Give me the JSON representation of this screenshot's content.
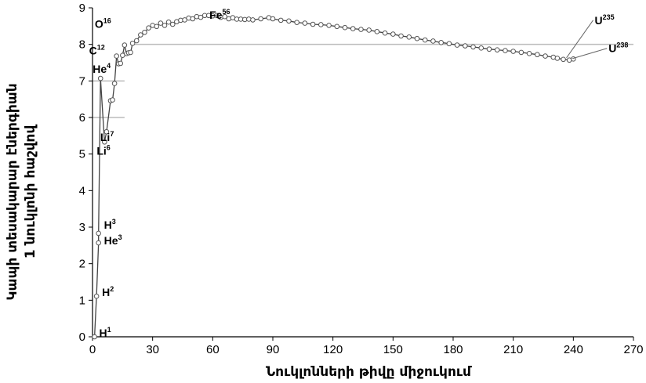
{
  "chart_data": {
    "type": "scatter",
    "xlabel": "Նուկլոնների թիվը միջուկում",
    "ylabel_lines": [
      "Կապի տեսակարար էներգիան",
      "1 նուկլոնի հաշվով"
    ],
    "xlim": [
      0,
      270
    ],
    "ylim": [
      0,
      9
    ],
    "xticks": [
      "0",
      "30",
      "60",
      "90",
      "120",
      "150",
      "180",
      "210",
      "240",
      "270"
    ],
    "yticks": [
      "0",
      "1",
      "2",
      "3",
      "4",
      "5",
      "6",
      "7",
      "8",
      "9"
    ],
    "grid": false,
    "reference_line_y": 8.0,
    "series": [
      {
        "points": [
          [
            1,
            0.0
          ],
          [
            2,
            1.11
          ],
          [
            3,
            2.57
          ],
          [
            3,
            2.83
          ],
          [
            4,
            7.07
          ],
          [
            6,
            5.33
          ],
          [
            7,
            5.61
          ],
          [
            9,
            6.46
          ],
          [
            10,
            6.48
          ],
          [
            11,
            6.93
          ],
          [
            12,
            7.68
          ],
          [
            13,
            7.47
          ],
          [
            14,
            7.48
          ],
          [
            15,
            7.7
          ],
          [
            16,
            7.98
          ],
          [
            17,
            7.75
          ],
          [
            18,
            7.77
          ],
          [
            19,
            7.78
          ],
          [
            20,
            8.03
          ],
          [
            22,
            8.1
          ],
          [
            24,
            8.26
          ],
          [
            26,
            8.33
          ],
          [
            28,
            8.45
          ],
          [
            30,
            8.52
          ],
          [
            32,
            8.49
          ],
          [
            34,
            8.58
          ],
          [
            36,
            8.52
          ],
          [
            38,
            8.61
          ],
          [
            40,
            8.55
          ],
          [
            42,
            8.62
          ],
          [
            44,
            8.66
          ],
          [
            46,
            8.67
          ],
          [
            48,
            8.72
          ],
          [
            50,
            8.7
          ],
          [
            52,
            8.76
          ],
          [
            54,
            8.74
          ],
          [
            56,
            8.79
          ],
          [
            58,
            8.79
          ],
          [
            60,
            8.78
          ],
          [
            62,
            8.79
          ],
          [
            64,
            8.74
          ],
          [
            66,
            8.76
          ],
          [
            68,
            8.7
          ],
          [
            70,
            8.73
          ],
          [
            72,
            8.69
          ],
          [
            74,
            8.69
          ],
          [
            76,
            8.68
          ],
          [
            78,
            8.69
          ],
          [
            80,
            8.67
          ],
          [
            84,
            8.7
          ],
          [
            88,
            8.73
          ],
          [
            90,
            8.7
          ],
          [
            94,
            8.66
          ],
          [
            98,
            8.64
          ],
          [
            102,
            8.6
          ],
          [
            106,
            8.58
          ],
          [
            110,
            8.55
          ],
          [
            114,
            8.54
          ],
          [
            118,
            8.52
          ],
          [
            122,
            8.49
          ],
          [
            126,
            8.46
          ],
          [
            130,
            8.43
          ],
          [
            134,
            8.41
          ],
          [
            138,
            8.39
          ],
          [
            142,
            8.35
          ],
          [
            146,
            8.31
          ],
          [
            150,
            8.28
          ],
          [
            154,
            8.23
          ],
          [
            158,
            8.2
          ],
          [
            162,
            8.16
          ],
          [
            166,
            8.12
          ],
          [
            170,
            8.09
          ],
          [
            174,
            8.05
          ],
          [
            178,
            8.02
          ],
          [
            182,
            7.98
          ],
          [
            186,
            7.96
          ],
          [
            190,
            7.93
          ],
          [
            194,
            7.9
          ],
          [
            198,
            7.87
          ],
          [
            202,
            7.85
          ],
          [
            206,
            7.83
          ],
          [
            210,
            7.81
          ],
          [
            214,
            7.78
          ],
          [
            218,
            7.75
          ],
          [
            222,
            7.72
          ],
          [
            226,
            7.68
          ],
          [
            230,
            7.65
          ],
          [
            232,
            7.62
          ],
          [
            235,
            7.59
          ],
          [
            238,
            7.57
          ],
          [
            240,
            7.6
          ]
        ]
      }
    ],
    "annotations": [
      {
        "name": "H",
        "mass": "1",
        "x": 1,
        "y": 0.0
      },
      {
        "name": "H",
        "mass": "2",
        "x": 2,
        "y": 1.11
      },
      {
        "name": "He",
        "mass": "3",
        "x": 3,
        "y": 2.57
      },
      {
        "name": "H",
        "mass": "3",
        "x": 3,
        "y": 2.83
      },
      {
        "name": "He",
        "mass": "4",
        "x": 4,
        "y": 7.07
      },
      {
        "name": "Li",
        "mass": "6",
        "x": 6,
        "y": 5.33
      },
      {
        "name": "Li",
        "mass": "7",
        "x": 7,
        "y": 5.61
      },
      {
        "name": "C",
        "mass": "12",
        "x": 12,
        "y": 7.68
      },
      {
        "name": "O",
        "mass": "16",
        "x": 16,
        "y": 7.98
      },
      {
        "name": "Fe",
        "mass": "56",
        "x": 56,
        "y": 8.79
      },
      {
        "name": "U",
        "mass": "235",
        "x": 235,
        "y": 7.59
      },
      {
        "name": "U",
        "mass": "238",
        "x": 238,
        "y": 7.57
      }
    ]
  }
}
